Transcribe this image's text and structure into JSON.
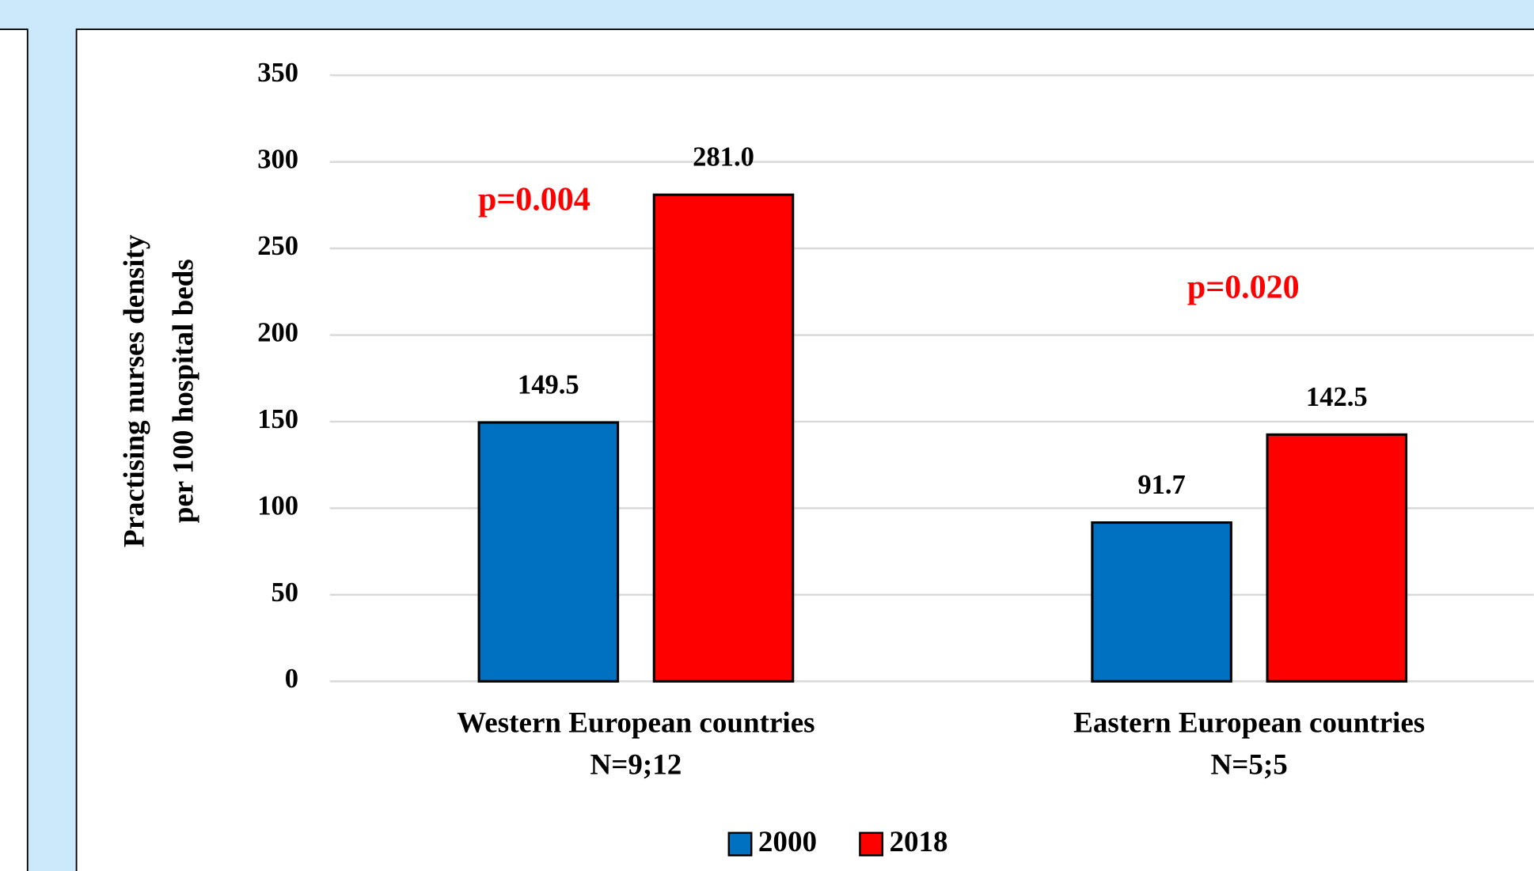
{
  "chart_data": {
    "type": "bar",
    "y_axis_title": [
      "Practising nurses density",
      "per 100 hospital beds"
    ],
    "categories": [
      [
        "Western European countries",
        "N=9;12"
      ],
      [
        "Eastern European countries",
        "N=5;5"
      ]
    ],
    "series": [
      {
        "name": "2000",
        "color": "#0070c0",
        "values": [
          149.5,
          91.7
        ],
        "value_labels": [
          "149.5",
          "91.7"
        ]
      },
      {
        "name": "2018",
        "color": "#ff0000",
        "values": [
          281.0,
          142.5
        ],
        "value_labels": [
          "281.0",
          "142.5"
        ]
      }
    ],
    "annotations": [
      {
        "text": "p=0.004",
        "color": "#ff0000"
      },
      {
        "text": "p=0.020",
        "color": "#ff0000"
      }
    ],
    "ylim": [
      0,
      350
    ],
    "yticks": [
      0,
      50,
      100,
      150,
      200,
      250,
      300,
      350
    ],
    "grid": true,
    "legend": "bottom"
  }
}
